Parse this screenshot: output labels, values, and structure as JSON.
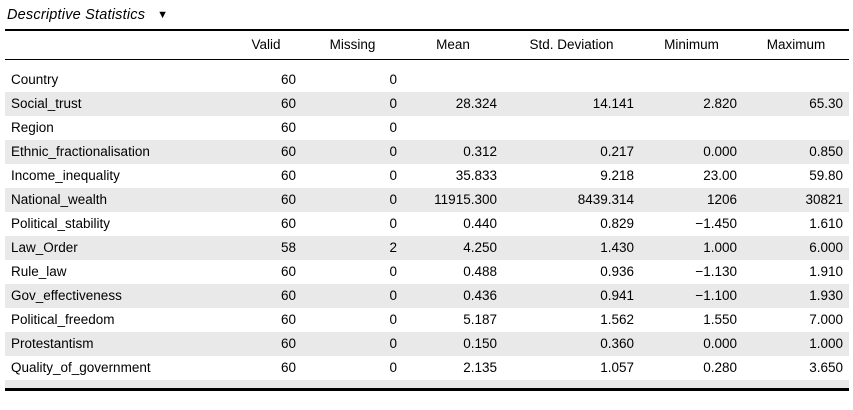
{
  "title": {
    "label": "Descriptive Statistics",
    "collapse_icon": "▼"
  },
  "colors": {
    "stripe": "#e9e9e9",
    "border": "#000000",
    "text": "#000000",
    "background": "#ffffff"
  },
  "table": {
    "columns": {
      "variable": "",
      "valid": "Valid",
      "missing": "Missing",
      "mean": "Mean",
      "sd": "Std. Deviation",
      "min": "Minimum",
      "max": "Maximum"
    },
    "rows": [
      {
        "variable": "Country",
        "valid": "60",
        "missing": "0",
        "mean": "",
        "sd": "",
        "min": "",
        "max": ""
      },
      {
        "variable": "Social_trust",
        "valid": "60",
        "missing": "0",
        "mean": "28.324",
        "sd": "14.141",
        "min": "2.820",
        "max": "65.30"
      },
      {
        "variable": "Region",
        "valid": "60",
        "missing": "0",
        "mean": "",
        "sd": "",
        "min": "",
        "max": ""
      },
      {
        "variable": "Ethnic_fractionalisation",
        "valid": "60",
        "missing": "0",
        "mean": "0.312",
        "sd": "0.217",
        "min": "0.000",
        "max": "0.850"
      },
      {
        "variable": "Income_inequality",
        "valid": "60",
        "missing": "0",
        "mean": "35.833",
        "sd": "9.218",
        "min": "23.00",
        "max": "59.80"
      },
      {
        "variable": "National_wealth",
        "valid": "60",
        "missing": "0",
        "mean": "11915.300",
        "sd": "8439.314",
        "min": "1206",
        "max": "30821"
      },
      {
        "variable": "Political_stability",
        "valid": "60",
        "missing": "0",
        "mean": "0.440",
        "sd": "0.829",
        "min": "−1.450",
        "max": "1.610"
      },
      {
        "variable": "Law_Order",
        "valid": "58",
        "missing": "2",
        "mean": "4.250",
        "sd": "1.430",
        "min": "1.000",
        "max": "6.000"
      },
      {
        "variable": "Rule_law",
        "valid": "60",
        "missing": "0",
        "mean": "0.488",
        "sd": "0.936",
        "min": "−1.130",
        "max": "1.910"
      },
      {
        "variable": "Gov_effectiveness",
        "valid": "60",
        "missing": "0",
        "mean": "0.436",
        "sd": "0.941",
        "min": "−1.100",
        "max": "1.930"
      },
      {
        "variable": "Political_freedom",
        "valid": "60",
        "missing": "0",
        "mean": "5.187",
        "sd": "1.562",
        "min": "1.550",
        "max": "7.000"
      },
      {
        "variable": "Protestantism",
        "valid": "60",
        "missing": "0",
        "mean": "0.150",
        "sd": "0.360",
        "min": "0.000",
        "max": "1.000"
      },
      {
        "variable": "Quality_of_government",
        "valid": "60",
        "missing": "0",
        "mean": "2.135",
        "sd": "1.057",
        "min": "0.280",
        "max": "3.650"
      }
    ]
  }
}
